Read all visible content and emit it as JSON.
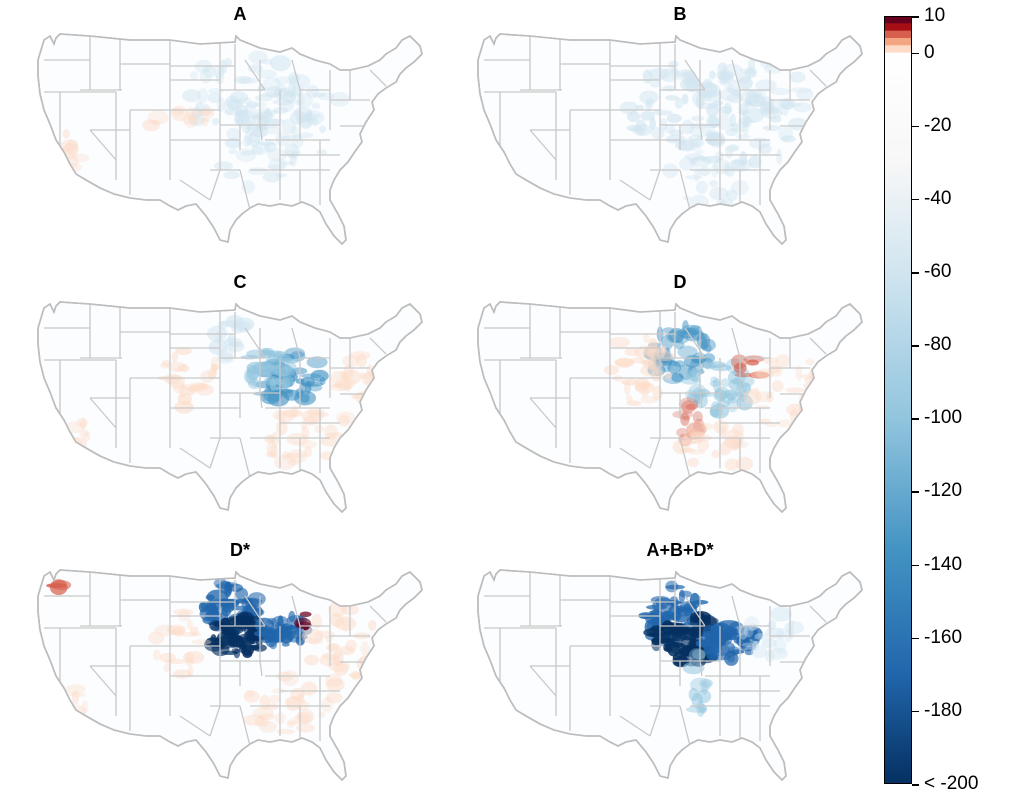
{
  "panels": [
    {
      "title": "A",
      "blue_intensity": 0.18,
      "red_intensity": 0.1,
      "pattern": "A"
    },
    {
      "title": "B",
      "blue_intensity": 0.2,
      "red_intensity": 0.02,
      "pattern": "B"
    },
    {
      "title": "C",
      "blue_intensity": 0.55,
      "red_intensity": 0.15,
      "pattern": "C"
    },
    {
      "title": "D",
      "blue_intensity": 0.5,
      "red_intensity": 0.2,
      "pattern": "D"
    },
    {
      "title": "D*",
      "blue_intensity": 0.95,
      "red_intensity": 0.3,
      "pattern": "Dstar"
    },
    {
      "title": "A+B+D*",
      "blue_intensity": 0.97,
      "red_intensity": 0.05,
      "pattern": "ABD"
    }
  ],
  "colorbar": {
    "ticks": [
      "10",
      "0",
      "-20",
      "-40",
      "-60",
      "-80",
      "-100",
      "-120",
      "-140",
      "-160",
      "-180",
      "< -200"
    ],
    "tick_values": [
      10,
      0,
      -20,
      -40,
      -60,
      -80,
      -100,
      -120,
      -140,
      -160,
      -180,
      -200
    ],
    "range": [
      -200,
      10
    ],
    "colors": {
      "dark_red": "#67001f",
      "red": "#d6604d",
      "light_red": "#f4a582",
      "pale_red": "#fddbc7",
      "white": "#f7f7f7",
      "pale_blue": "#d1e5f0",
      "light_blue": "#92c5de",
      "blue": "#4393c3",
      "mid_blue": "#2166ac",
      "dark_blue": "#053061"
    }
  }
}
